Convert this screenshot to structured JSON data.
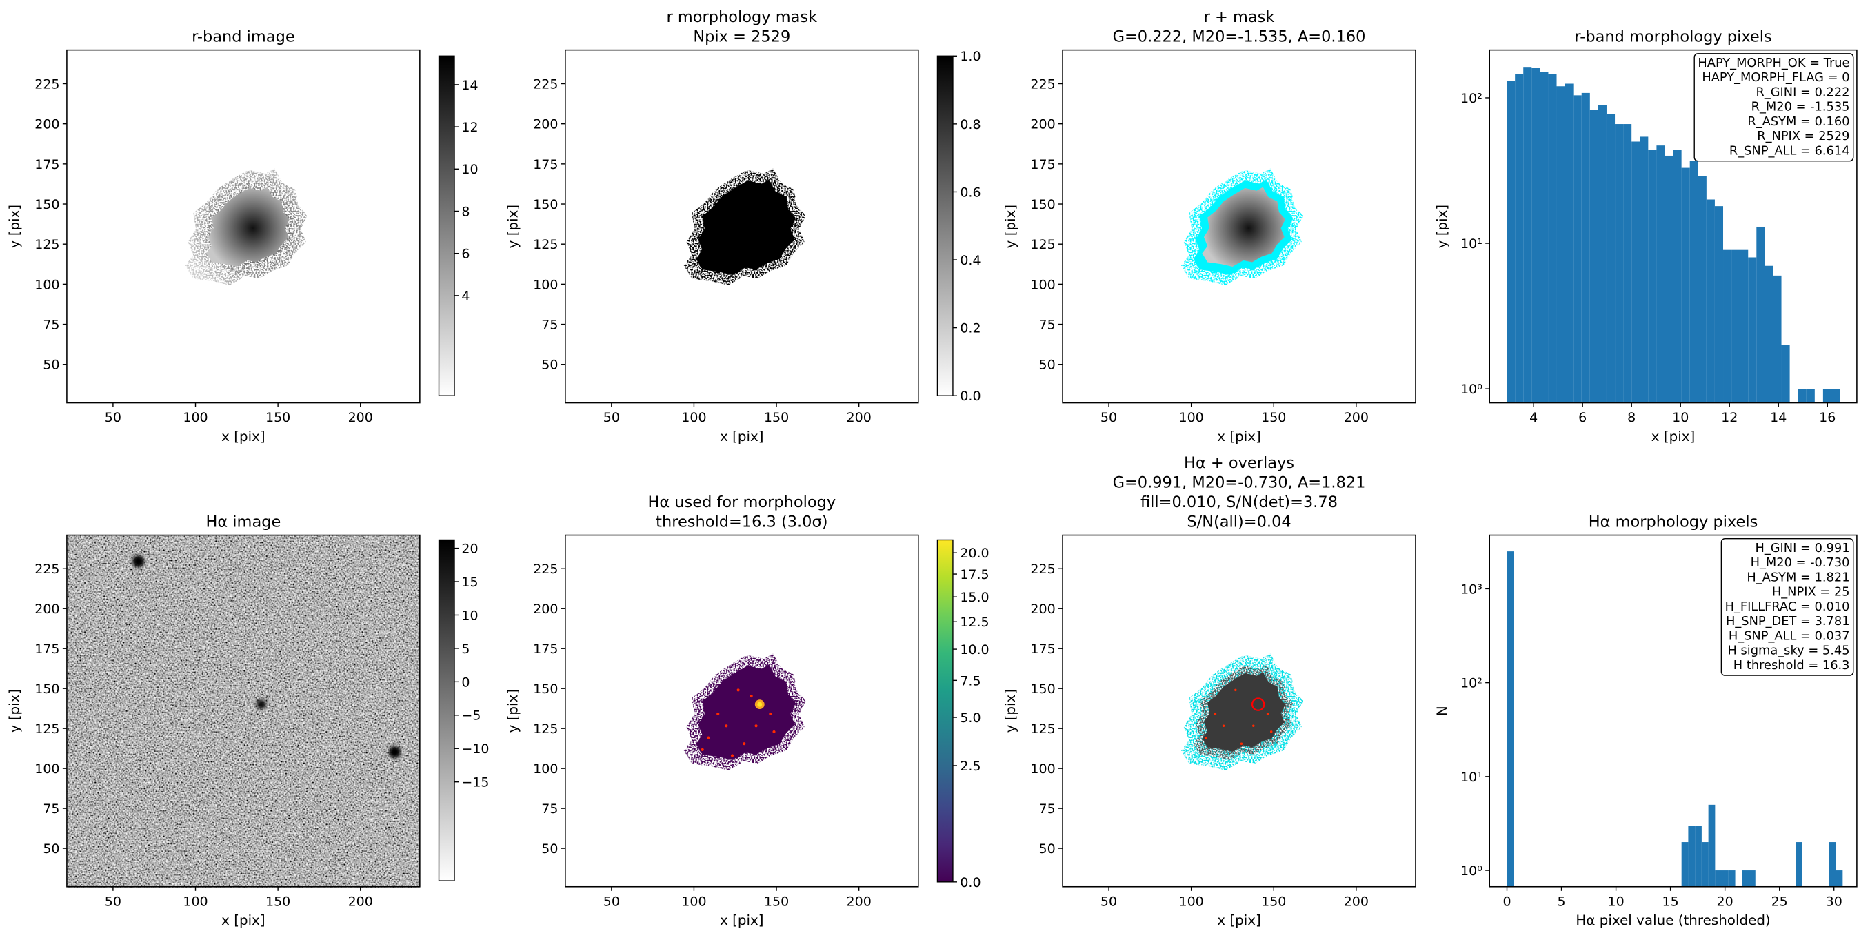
{
  "chart_data": [
    {
      "type": "image",
      "title": [
        "r-band image"
      ],
      "xlabel": "x [pix]",
      "ylabel": "y [pix]",
      "xlim": [
        22,
        236
      ],
      "ylim": [
        26,
        246
      ],
      "xticks": [
        50,
        100,
        150,
        200
      ],
      "yticks": [
        50,
        75,
        100,
        125,
        150,
        175,
        200,
        225
      ],
      "colorbar": {
        "cmap": "gray_r",
        "scale": "linear",
        "clim": [
          -0.75,
          15.36
        ],
        "ticks": [
          4,
          6,
          8,
          10,
          12,
          14
        ]
      }
    },
    {
      "type": "image",
      "title": [
        "r morphology mask",
        "Npix = 2529"
      ],
      "xlabel": "x [pix]",
      "ylabel": "y [pix]",
      "xlim": [
        22,
        236
      ],
      "ylim": [
        26,
        246
      ],
      "xticks": [
        50,
        100,
        150,
        200
      ],
      "yticks": [
        50,
        75,
        100,
        125,
        150,
        175,
        200,
        225
      ],
      "colorbar": {
        "cmap": "gray_r",
        "scale": "linear",
        "clim": [
          0,
          1
        ],
        "ticks": [
          {
            "value": 0,
            "label": "0.0"
          },
          0.2,
          0.4,
          0.6,
          0.8,
          {
            "value": 1,
            "label": "1.0"
          }
        ]
      }
    },
    {
      "type": "image",
      "title": [
        "r + mask",
        "G=0.222, M20=-1.535, A=0.160"
      ],
      "xlabel": "x [pix]",
      "ylabel": "y [pix]",
      "xlim": [
        22,
        236
      ],
      "ylim": [
        26,
        246
      ],
      "xticks": [
        50,
        100,
        150,
        200
      ],
      "yticks": [
        50,
        75,
        100,
        125,
        150,
        175,
        200,
        225
      ]
    },
    {
      "type": "histogram",
      "title": [
        "r-band morphology pixels"
      ],
      "xlabel": "x [pix]",
      "ylabel": "y [pix]",
      "color": "#1f77b4",
      "log_y": true,
      "xlim": [
        2.2,
        17.2
      ],
      "ylim": [
        0.8,
        213
      ],
      "xticks": [
        4,
        6,
        8,
        10,
        12,
        14,
        16
      ],
      "yticks": [
        {
          "value": 1,
          "label": "10⁰"
        },
        {
          "value": 10,
          "label": "10¹"
        },
        {
          "value": 100,
          "label": "10²"
        }
      ],
      "bins": [
        2.9,
        3.24,
        3.58,
        3.92,
        4.26,
        4.6,
        4.94,
        5.28,
        5.62,
        5.96,
        6.3,
        6.64,
        6.98,
        7.32,
        7.66,
        8.0,
        8.34,
        8.68,
        9.02,
        9.36,
        9.7,
        10.04,
        10.38,
        10.72,
        11.06,
        11.4,
        11.74,
        12.08,
        12.42,
        12.76,
        13.1,
        13.44,
        13.78,
        14.12,
        14.46,
        14.8,
        15.14,
        15.48,
        15.82,
        16.16,
        16.5
      ],
      "counts": [
        130,
        145,
        163,
        160,
        150,
        145,
        120,
        125,
        104,
        108,
        83,
        89,
        77,
        66,
        66,
        50,
        54,
        44,
        47,
        40,
        44,
        33,
        37,
        29,
        20,
        18,
        9,
        9,
        9,
        8,
        13,
        7,
        6,
        2,
        0,
        1,
        1,
        0,
        1,
        1
      ],
      "annotation": [
        "HAPY_MORPH_OK = True",
        "HAPY_MORPH_FLAG = 0",
        "R_GINI = 0.222",
        "R_M20 = -1.535",
        "R_ASYM = 0.160",
        "R_NPIX = 2529",
        "R_SNP_ALL = 6.614"
      ]
    },
    {
      "type": "image",
      "title": [
        "Hα image"
      ],
      "xlabel": "x [pix]",
      "ylabel": "y [pix]",
      "xlim": [
        22,
        236
      ],
      "ylim": [
        26,
        246
      ],
      "xticks": [
        50,
        100,
        150,
        200
      ],
      "yticks": [
        50,
        75,
        100,
        125,
        150,
        175,
        200,
        225
      ],
      "colorbar": {
        "cmap": "gray_r",
        "scale": "linear",
        "clim": [
          -29.8,
          21.25
        ],
        "ticks": [
          20,
          15,
          10,
          5,
          0,
          {
            "value": -5,
            "label": "−5"
          },
          {
            "value": -10,
            "label": "−10"
          },
          {
            "value": -15,
            "label": "−15"
          }
        ]
      }
    },
    {
      "type": "image",
      "title": [
        "Hα used for morphology",
        "threshold=16.3 (3.0σ)"
      ],
      "xlabel": "x [pix]",
      "ylabel": "y [pix]",
      "xlim": [
        22,
        236
      ],
      "ylim": [
        26,
        246
      ],
      "xticks": [
        50,
        100,
        150,
        200
      ],
      "yticks": [
        50,
        75,
        100,
        125,
        150,
        175,
        200,
        225
      ],
      "colorbar": {
        "cmap": "viridis",
        "scale": "sqrt",
        "clim": [
          0,
          21.6
        ],
        "ticks": [
          {
            "value": 0,
            "label": "0.0"
          },
          2.5,
          {
            "value": 5,
            "label": "5.0"
          },
          7.5,
          {
            "value": 10,
            "label": "10.0"
          },
          12.5,
          {
            "value": 15,
            "label": "15.0"
          },
          17.5,
          {
            "value": 20,
            "label": "20.0"
          }
        ]
      }
    },
    {
      "type": "image",
      "title": [
        "Hα + overlays",
        "G=0.991, M20=-0.730, A=1.821",
        "fill=0.010, S/N(det)=3.78",
        "S/N(all)=0.04"
      ],
      "xlabel": "x [pix]",
      "ylabel": "y [pix]",
      "xlim": [
        22,
        236
      ],
      "ylim": [
        26,
        246
      ],
      "xticks": [
        50,
        100,
        150,
        200
      ],
      "yticks": [
        50,
        75,
        100,
        125,
        150,
        175,
        200,
        225
      ]
    },
    {
      "type": "histogram",
      "title": [
        "Hα morphology pixels"
      ],
      "xlabel": "Hα pixel value (thresholded)",
      "ylabel": "N",
      "color": "#1f77b4",
      "log_y": true,
      "xlim": [
        -1.6,
        32.1
      ],
      "ylim": [
        0.67,
        3730
      ],
      "xticks": [
        0,
        5,
        10,
        15,
        20,
        25,
        30
      ],
      "yticks": [
        {
          "value": 1,
          "label": "10⁰"
        },
        {
          "value": 10,
          "label": "10¹"
        },
        {
          "value": 100,
          "label": "10²"
        },
        {
          "value": 1000,
          "label": "10³"
        }
      ],
      "bins": [
        0,
        0.616,
        1.232,
        1.848,
        2.464,
        3.08,
        3.696,
        4.312,
        4.928,
        5.544,
        6.16,
        6.776,
        7.392,
        8.008,
        8.624,
        9.24,
        9.856,
        10.472,
        11.088,
        11.704,
        12.32,
        12.936,
        13.552,
        14.168,
        14.784,
        15.4,
        16.016,
        16.632,
        17.248,
        17.864,
        18.48,
        19.096,
        19.712,
        20.328,
        20.944,
        21.56,
        22.176,
        22.792,
        23.408,
        24.024,
        24.64,
        25.256,
        25.872,
        26.488,
        27.104,
        27.72,
        28.336,
        28.952,
        29.568,
        30.184,
        30.8
      ],
      "counts": [
        2504,
        0,
        0,
        0,
        0,
        0,
        0,
        0,
        0,
        0,
        0,
        0,
        0,
        0,
        0,
        0,
        0,
        0,
        0,
        0,
        0,
        0,
        0,
        0,
        0,
        0,
        2,
        3,
        3,
        2,
        5,
        1,
        1,
        1,
        0,
        1,
        1,
        0,
        0,
        0,
        0,
        0,
        0,
        2,
        0,
        0,
        0,
        0,
        2,
        1
      ],
      "annotation": [
        "H_GINI = 0.991",
        "H_M20 = -0.730",
        "H_ASYM = 1.821",
        "H_NPIX = 25",
        "H_FILLFRAC = 0.010",
        "H_SNP_DET = 3.781",
        "H_SNP_ALL = 0.037",
        "H sigma_sky = 5.45",
        "H threshold = 16.3"
      ]
    }
  ]
}
